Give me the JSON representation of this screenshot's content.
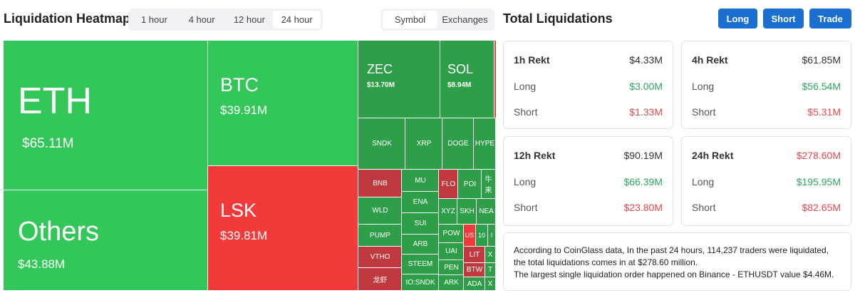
{
  "header": {
    "title": "Liquidation Heatmap",
    "time_tabs": [
      "1 hour",
      "4 hour",
      "12 hour",
      "24 hour"
    ],
    "view_tabs": [
      "Symbol",
      "Exchanges"
    ]
  },
  "panel": {
    "title": "Total Liquidations",
    "buttons": [
      "Long",
      "Short",
      "Trade"
    ]
  },
  "treemap": [
    {
      "symbol": "ETH",
      "value": "$65.11M"
    },
    {
      "symbol": "Others",
      "value": "$43.88M"
    },
    {
      "symbol": "BTC",
      "value": "$39.91M"
    },
    {
      "symbol": "LSK",
      "value": "$39.81M"
    },
    {
      "symbol": "ZEC",
      "value": "$13.70M"
    },
    {
      "symbol": "SOL",
      "value": "$8.94M"
    },
    {
      "symbol": "SNDK"
    },
    {
      "symbol": "XRP"
    },
    {
      "symbol": "DOGE"
    },
    {
      "symbol": "HYPE"
    },
    {
      "symbol": "BNB"
    },
    {
      "symbol": "WLD"
    },
    {
      "symbol": "PUMP"
    },
    {
      "symbol": "VTHO"
    },
    {
      "symbol": "龙虾"
    },
    {
      "symbol": "MU"
    },
    {
      "symbol": "ENA"
    },
    {
      "symbol": "SUI"
    },
    {
      "symbol": "ARB"
    },
    {
      "symbol": "STEEM"
    },
    {
      "symbol": "IO:SNDK"
    },
    {
      "symbol": "FLO"
    },
    {
      "symbol": "POI"
    },
    {
      "symbol": "牛来"
    },
    {
      "symbol": "XYZ"
    },
    {
      "symbol": "SKH"
    },
    {
      "symbol": "NEA"
    },
    {
      "symbol": "POW"
    },
    {
      "symbol": "US"
    },
    {
      "symbol": "10"
    },
    {
      "symbol": "I"
    },
    {
      "symbol": "UAI"
    },
    {
      "symbol": "LIT"
    },
    {
      "symbol": "X"
    },
    {
      "symbol": "PEN"
    },
    {
      "symbol": "BTW"
    },
    {
      "symbol": "T"
    },
    {
      "symbol": "ARK"
    },
    {
      "symbol": "ADA"
    },
    {
      "symbol": "X"
    }
  ],
  "cards": [
    {
      "title": "1h Rekt",
      "total": "$4.33M",
      "long_label": "Long",
      "long": "$3.00M",
      "short_label": "Short",
      "short": "$1.33M"
    },
    {
      "title": "4h Rekt",
      "total": "$61.85M",
      "long_label": "Long",
      "long": "$56.54M",
      "short_label": "Short",
      "short": "$5.31M"
    },
    {
      "title": "12h Rekt",
      "total": "$90.19M",
      "long_label": "Long",
      "long": "$66.39M",
      "short_label": "Short",
      "short": "$23.80M"
    },
    {
      "title": "24h Rekt",
      "total": "$278.60M",
      "long_label": "Long",
      "long": "$195.95M",
      "short_label": "Short",
      "short": "$82.65M"
    }
  ],
  "summary": [
    "According to CoinGlass data, In the past 24 hours, 114,237 traders were liquidated, the total liquidations comes in at $278.60 million.",
    "The largest single liquidation order happened on Binance - ETHUSDT value $4.46M."
  ]
}
